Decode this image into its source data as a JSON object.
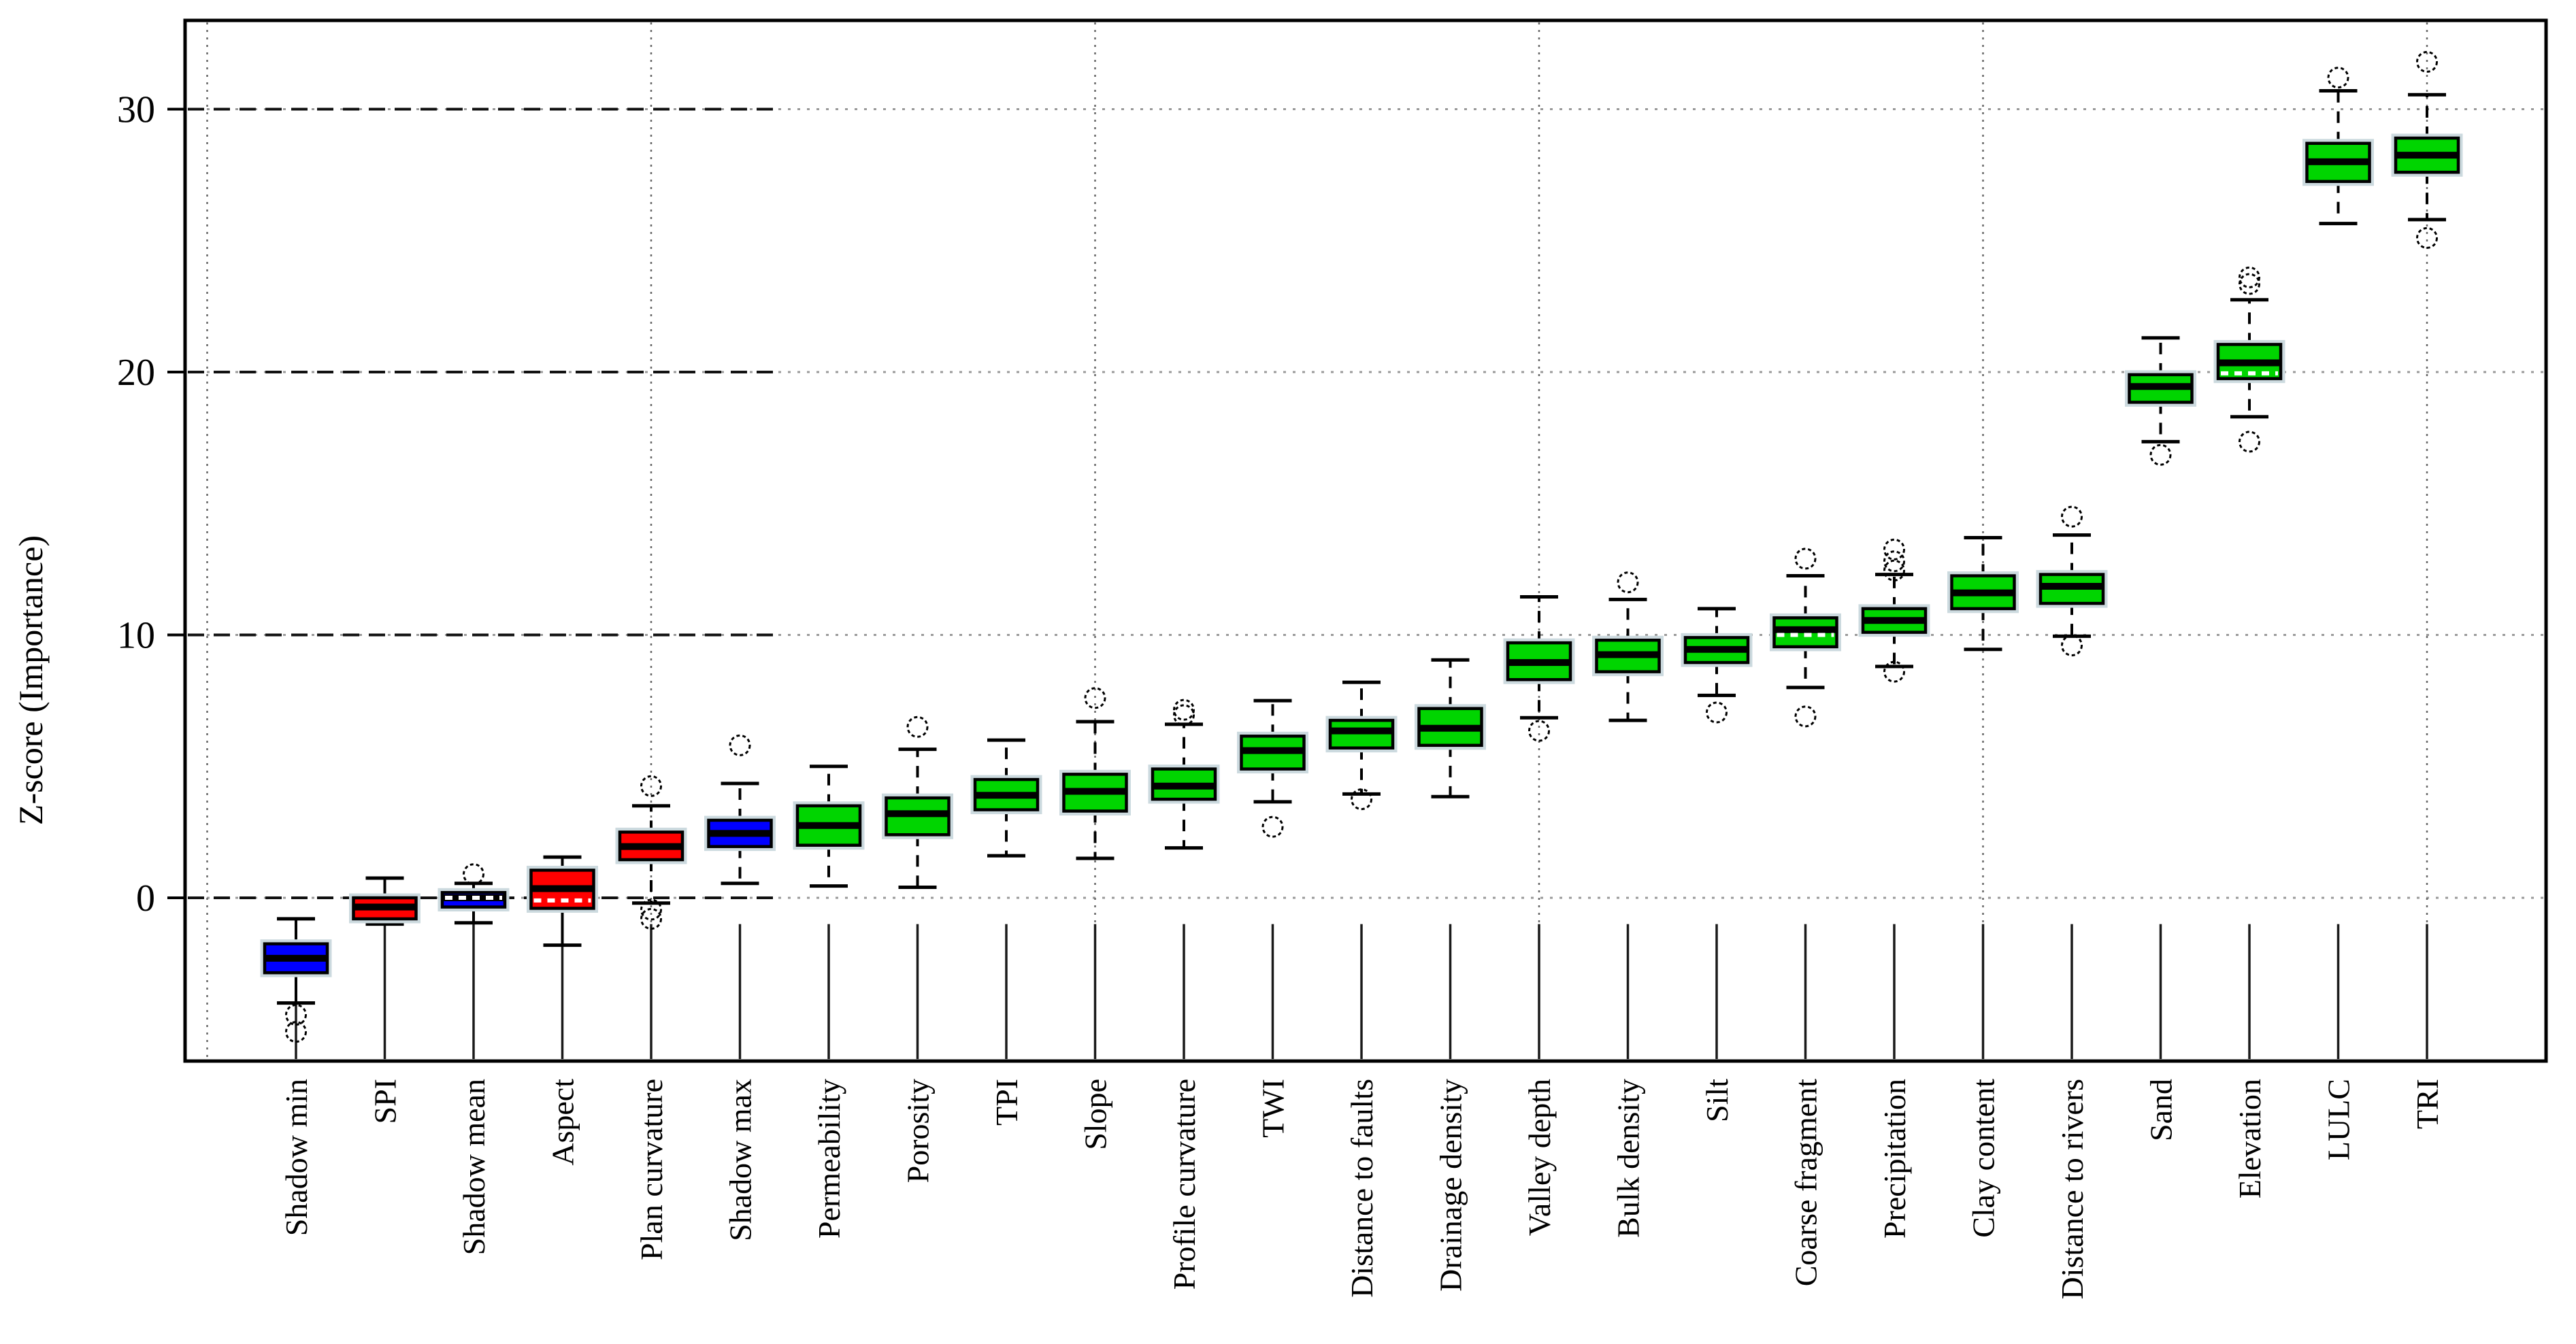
{
  "figure": {
    "ylabel": "Z-score (Importance)"
  },
  "chart_data": {
    "type": "boxplot",
    "title": "",
    "xlabel": "",
    "ylabel": "Z-score (Importance)",
    "yticks": [
      0,
      10,
      20,
      30
    ],
    "ylim": [
      -6.2,
      33.4
    ],
    "grid": "horizontal dashed lines at yticks; vertical dotted lines at category slots 0,5,10,15,20,25",
    "vertical_gridline_slots": [
      0,
      5,
      10,
      15,
      20,
      25
    ],
    "legend": "none",
    "colors": {
      "shadow_blue": "#0000ff",
      "negative_red": "#ff0000",
      "importance_green": "#00d500"
    },
    "categories": [
      "Shadow min",
      "SPI",
      "Shadow mean",
      "Aspect",
      "Plan curvature",
      "Shadow max",
      "Permeability",
      "Porosity",
      "TPI",
      "Slope",
      "Profile curvature",
      "TWI",
      "Distance to faults",
      "Drainage density",
      "Valley depth",
      "Bulk density",
      "Silt",
      "Coarse fragment",
      "Precipitation",
      "Clay content",
      "Distance to rivers",
      "Sand",
      "Elevation",
      "LULC",
      "TRI"
    ],
    "boxes": [
      {
        "label": "Shadow min",
        "color": "#0000ff",
        "whisker": "solid",
        "whislo": -4.0,
        "q1": -2.85,
        "med": -2.3,
        "q3": -1.75,
        "whishi": -0.8,
        "outliers_high": [],
        "outliers_low": [
          -4.45,
          -5.1
        ]
      },
      {
        "label": "SPI",
        "color": "#ff0000",
        "whisker": "solid",
        "whislo": -1.0,
        "q1": -0.8,
        "med": -0.35,
        "q3": 0.0,
        "whishi": 0.75,
        "outliers_high": [],
        "outliers_low": []
      },
      {
        "label": "Shadow mean",
        "color": "#0000ff",
        "whisker": "solid",
        "whislo": -0.95,
        "q1": -0.35,
        "med": 0.0,
        "q3": 0.2,
        "whishi": 0.55,
        "mean": 0.0,
        "outliers_high": [
          0.9
        ],
        "outliers_low": []
      },
      {
        "label": "Aspect",
        "color": "#ff0000",
        "whisker": "solid",
        "whislo": -1.8,
        "q1": -0.4,
        "med": 0.35,
        "q3": 1.05,
        "whishi": 1.55,
        "mean": -0.1,
        "outliers_high": [],
        "outliers_low": []
      },
      {
        "label": "Plan curvature",
        "color": "#ff0000",
        "whisker": "dashed",
        "whislo": -0.2,
        "q1": 1.45,
        "med": 1.95,
        "q3": 2.5,
        "whishi": 3.5,
        "outliers_high": [
          4.25
        ],
        "outliers_low": [
          -0.45,
          -0.8
        ]
      },
      {
        "label": "Shadow max",
        "color": "#0000ff",
        "whisker": "dashed",
        "whislo": 0.55,
        "q1": 1.95,
        "med": 2.45,
        "q3": 2.95,
        "whishi": 4.35,
        "outliers_high": [
          5.8
        ],
        "outliers_low": []
      },
      {
        "label": "Permeability",
        "color": "#00d500",
        "whisker": "dashed",
        "whislo": 0.45,
        "q1": 2.0,
        "med": 2.75,
        "q3": 3.5,
        "whishi": 5.0,
        "outliers_high": [],
        "outliers_low": []
      },
      {
        "label": "Porosity",
        "color": "#00d500",
        "whisker": "dashed",
        "whislo": 0.4,
        "q1": 2.4,
        "med": 3.2,
        "q3": 3.8,
        "whishi": 5.65,
        "outliers_high": [
          6.5
        ],
        "outliers_low": []
      },
      {
        "label": "TPI",
        "color": "#00d500",
        "whisker": "dashed",
        "whislo": 1.6,
        "q1": 3.35,
        "med": 3.9,
        "q3": 4.5,
        "whishi": 6.0,
        "outliers_high": [],
        "outliers_low": []
      },
      {
        "label": "Slope",
        "color": "#00d500",
        "whisker": "dashed",
        "whislo": 1.5,
        "q1": 3.3,
        "med": 4.05,
        "q3": 4.7,
        "whishi": 6.7,
        "outliers_high": [
          7.6
        ],
        "outliers_low": []
      },
      {
        "label": "Profile curvature",
        "color": "#00d500",
        "whisker": "dashed",
        "whislo": 1.9,
        "q1": 3.75,
        "med": 4.25,
        "q3": 4.9,
        "whishi": 6.6,
        "outliers_high": [
          6.95,
          7.15
        ],
        "outliers_low": []
      },
      {
        "label": "TWI",
        "color": "#00d500",
        "whisker": "dashed",
        "whislo": 3.65,
        "q1": 4.9,
        "med": 5.6,
        "q3": 6.15,
        "whishi": 7.5,
        "outliers_high": [],
        "outliers_low": [
          2.7
        ]
      },
      {
        "label": "Distance to faults",
        "color": "#00d500",
        "whisker": "dashed",
        "whislo": 3.95,
        "q1": 5.7,
        "med": 6.35,
        "q3": 6.75,
        "whishi": 8.2,
        "outliers_high": [],
        "outliers_low": [
          3.75
        ]
      },
      {
        "label": "Drainage density",
        "color": "#00d500",
        "whisker": "dashed",
        "whislo": 3.85,
        "q1": 5.8,
        "med": 6.45,
        "q3": 7.2,
        "whishi": 9.05,
        "outliers_high": [],
        "outliers_low": []
      },
      {
        "label": "Valley depth",
        "color": "#00d500",
        "whisker": "dashed",
        "whislo": 6.85,
        "q1": 8.3,
        "med": 8.95,
        "q3": 9.7,
        "whishi": 11.45,
        "outliers_high": [],
        "outliers_low": [
          6.35
        ]
      },
      {
        "label": "Bulk density",
        "color": "#00d500",
        "whisker": "dashed",
        "whislo": 6.75,
        "q1": 8.6,
        "med": 9.25,
        "q3": 9.8,
        "whishi": 11.35,
        "outliers_high": [
          12.0
        ],
        "outliers_low": []
      },
      {
        "label": "Silt",
        "color": "#00d500",
        "whisker": "dashed",
        "whislo": 7.7,
        "q1": 8.95,
        "med": 9.45,
        "q3": 9.9,
        "whishi": 11.0,
        "outliers_high": [],
        "outliers_low": [
          7.05
        ]
      },
      {
        "label": "Coarse fragment",
        "color": "#00d500",
        "whisker": "dashed",
        "whislo": 8.0,
        "q1": 9.55,
        "med": 10.2,
        "q3": 10.65,
        "whishi": 12.25,
        "mean": 10.0,
        "outliers_high": [
          12.9
        ],
        "outliers_low": [
          6.9
        ]
      },
      {
        "label": "Precipitation",
        "color": "#00d500",
        "whisker": "dashed",
        "whislo": 8.8,
        "q1": 10.1,
        "med": 10.55,
        "q3": 11.0,
        "whishi": 12.3,
        "outliers_high": [
          12.45,
          12.8,
          13.25
        ],
        "outliers_low": [
          8.6
        ]
      },
      {
        "label": "Clay content",
        "color": "#00d500",
        "whisker": "dashed",
        "whislo": 9.45,
        "q1": 11.0,
        "med": 11.6,
        "q3": 12.25,
        "whishi": 13.7,
        "outliers_high": [],
        "outliers_low": []
      },
      {
        "label": "Distance to rivers",
        "color": "#00d500",
        "whisker": "dashed",
        "whislo": 9.95,
        "q1": 11.2,
        "med": 11.85,
        "q3": 12.3,
        "whishi": 13.8,
        "outliers_high": [
          14.5
        ],
        "outliers_low": [
          9.6
        ]
      },
      {
        "label": "Sand",
        "color": "#00d500",
        "whisker": "dashed",
        "whislo": 17.35,
        "q1": 18.85,
        "med": 19.45,
        "q3": 19.9,
        "whishi": 21.3,
        "outliers_high": [],
        "outliers_low": [
          16.85
        ]
      },
      {
        "label": "Elevation",
        "color": "#00d500",
        "whisker": "dashed",
        "whislo": 18.3,
        "q1": 19.75,
        "med": 20.35,
        "q3": 21.05,
        "whishi": 22.75,
        "mean": 19.95,
        "outliers_high": [
          23.35,
          23.6
        ],
        "outliers_low": [
          17.35
        ]
      },
      {
        "label": "LULC",
        "color": "#00d500",
        "whisker": "dashed",
        "whislo": 25.65,
        "q1": 27.25,
        "med": 28.0,
        "q3": 28.7,
        "whishi": 30.7,
        "outliers_high": [
          31.2
        ],
        "outliers_low": []
      },
      {
        "label": "TRI",
        "color": "#00d500",
        "whisker": "dashed",
        "whislo": 25.8,
        "q1": 27.6,
        "med": 28.25,
        "q3": 28.9,
        "whishi": 30.55,
        "outliers_high": [
          31.8
        ],
        "outliers_low": [
          25.1
        ]
      }
    ]
  }
}
